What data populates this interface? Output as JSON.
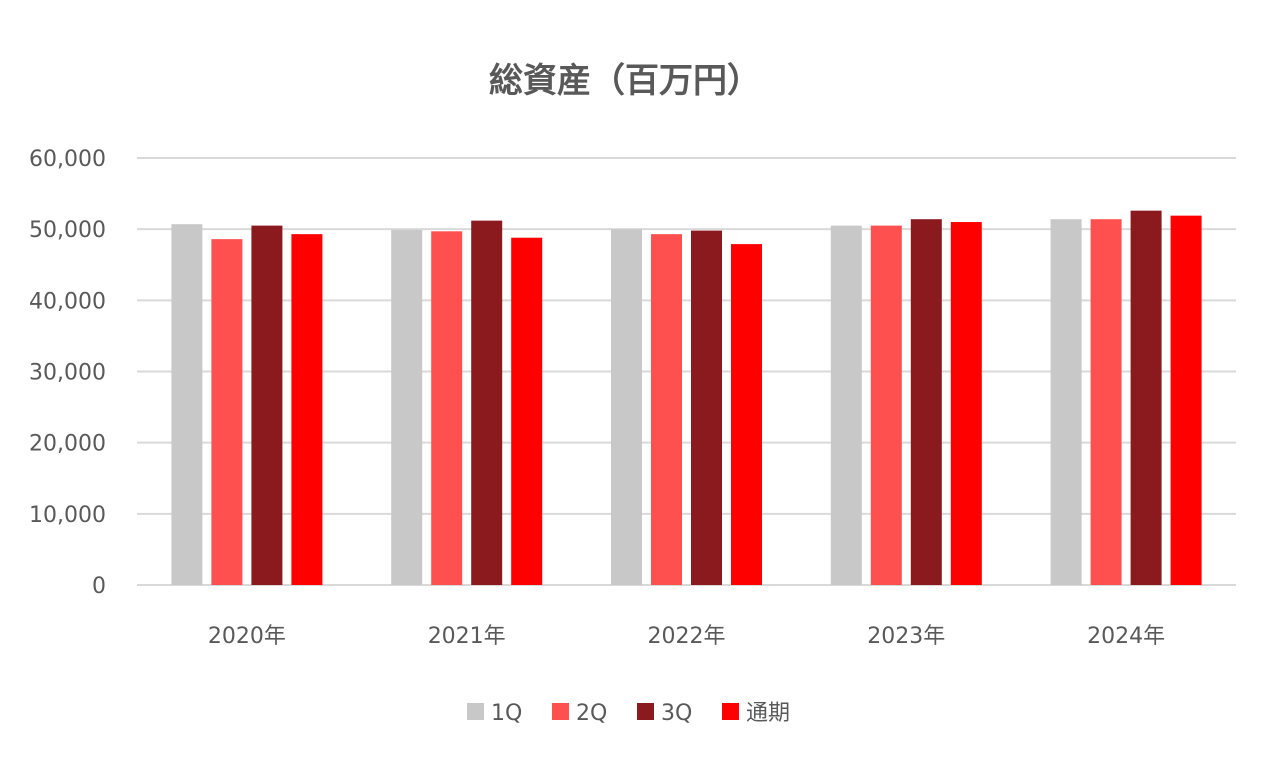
{
  "chart_data": {
    "type": "bar",
    "title": "総資産（百万円）",
    "categories": [
      "2020年",
      "2021年",
      "2022年",
      "2023年",
      "2024年"
    ],
    "series": [
      {
        "name": "1Q",
        "color": "#c8c8c8",
        "values": [
          50700,
          49900,
          50000,
          50500,
          51400
        ]
      },
      {
        "name": "2Q",
        "color": "#ff5050",
        "values": [
          48600,
          49700,
          49300,
          50500,
          51400
        ]
      },
      {
        "name": "3Q",
        "color": "#8b1a1f",
        "values": [
          50500,
          51200,
          49800,
          51400,
          52600
        ]
      },
      {
        "name": "通期",
        "color": "#ff0000",
        "values": [
          49300,
          48800,
          47900,
          51000,
          51900
        ]
      }
    ],
    "ylim": [
      0,
      60000
    ],
    "yticks": [
      "0",
      "10,000",
      "20,000",
      "30,000",
      "40,000",
      "50,000",
      "60,000"
    ],
    "ytick_values": [
      0,
      10000,
      20000,
      30000,
      40000,
      50000,
      60000
    ],
    "grid": true,
    "legend_position": "bottom"
  }
}
